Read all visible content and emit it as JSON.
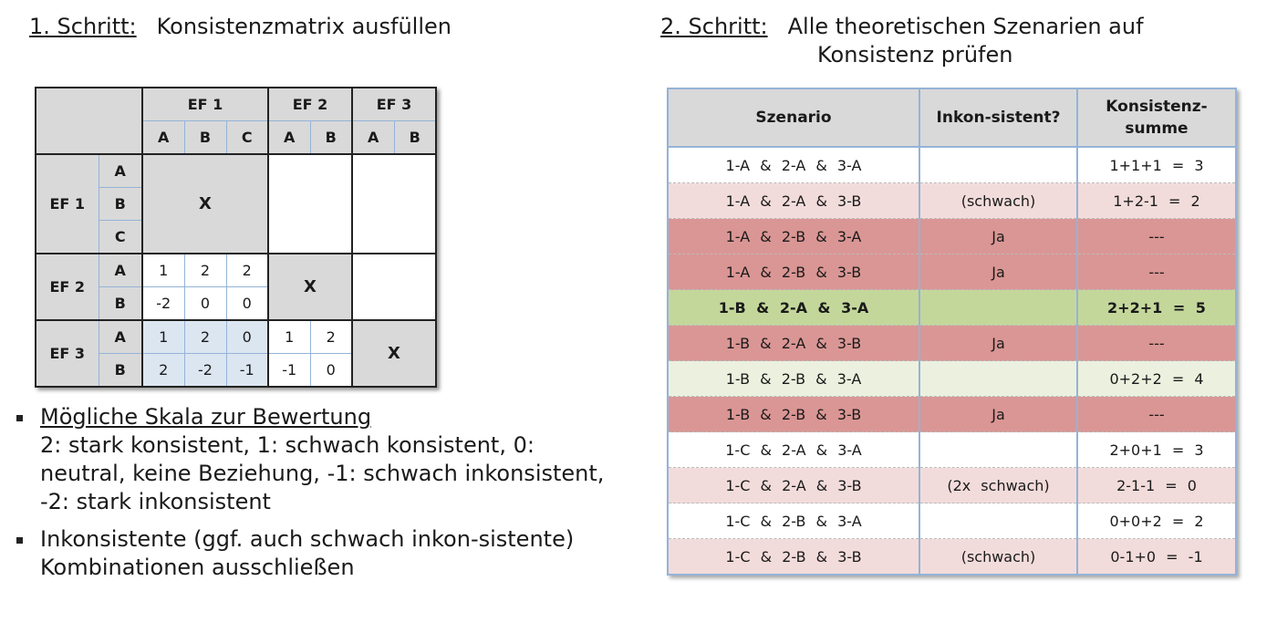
{
  "step1": {
    "label": "1. Schritt:",
    "text": "Konsistenzmatrix ausfüllen"
  },
  "step2": {
    "label": "2. Schritt:",
    "text_line1": "Alle theoretischen Szenarien auf",
    "text_line2": "Konsistenz prüfen"
  },
  "matrix": {
    "factors": [
      "EF 1",
      "EF 2",
      "EF 3"
    ],
    "sub": [
      "A",
      "B",
      "C"
    ],
    "mark": "X",
    "ef2_vs_ef1": [
      [
        "1",
        "2",
        "2"
      ],
      [
        "-2",
        "0",
        "0"
      ]
    ],
    "ef3_vs_ef1": [
      [
        "1",
        "2",
        "0"
      ],
      [
        "2",
        "-2",
        "-1"
      ]
    ],
    "ef3_vs_ef2": [
      [
        "1",
        "2"
      ],
      [
        "-1",
        "0"
      ]
    ]
  },
  "bullets": [
    {
      "heading": "Mögliche Skala zur Bewertung",
      "text": "2: stark konsistent, 1: schwach konsistent, 0: neutral, keine Beziehung, -1: schwach inkonsistent, -2: stark inkonsistent"
    },
    {
      "text": "Inkonsistente (ggf. auch schwach inkon-sistente) Kombinationen ausschließen"
    }
  ],
  "scenarios": {
    "headers": [
      "Szenario",
      "Inkon-sistent?",
      "Konsistenz-summe"
    ],
    "colors": {
      "white": "#ffffff",
      "pink": "#f2dcdb",
      "red": "#da9694",
      "green": "#c4d79b",
      "lgreen": "#ebf1de"
    },
    "rows": [
      {
        "s": "1-A & 2-A & 3-A",
        "i": "",
        "k": "1+1+1  = 3",
        "c": "white"
      },
      {
        "s": "1-A & 2-A & 3-B",
        "i": "(schwach)",
        "k": "1+2-1 = 2",
        "c": "pink"
      },
      {
        "s": "1-A & 2-B & 3-A",
        "i": "Ja",
        "k": "---",
        "c": "red"
      },
      {
        "s": "1-A & 2-B & 3-B",
        "i": "Ja",
        "k": "---",
        "c": "red"
      },
      {
        "s": "1-B & 2-A & 3-A",
        "i": "",
        "k": "2+2+1 = 5",
        "c": "green"
      },
      {
        "s": "1-B & 2-A & 3-B",
        "i": "Ja",
        "k": "---",
        "c": "red"
      },
      {
        "s": "1-B & 2-B & 3-A",
        "i": "",
        "k": "0+2+2  = 4",
        "c": "lgreen"
      },
      {
        "s": "1-B & 2-B & 3-B",
        "i": "Ja",
        "k": "---",
        "c": "red"
      },
      {
        "s": "1-C & 2-A & 3-A",
        "i": "",
        "k": "2+0+1  = 3",
        "c": "white"
      },
      {
        "s": "1-C & 2-A & 3-B",
        "i": "(2x schwach)",
        "k": "2-1-1 = 0",
        "c": "pink"
      },
      {
        "s": "1-C & 2-B & 3-A",
        "i": "",
        "k": "0+0+2  = 2",
        "c": "white"
      },
      {
        "s": "1-C & 2-B & 3-B",
        "i": "(schwach)",
        "k": "0-1+0 = -1",
        "c": "pink"
      }
    ]
  }
}
